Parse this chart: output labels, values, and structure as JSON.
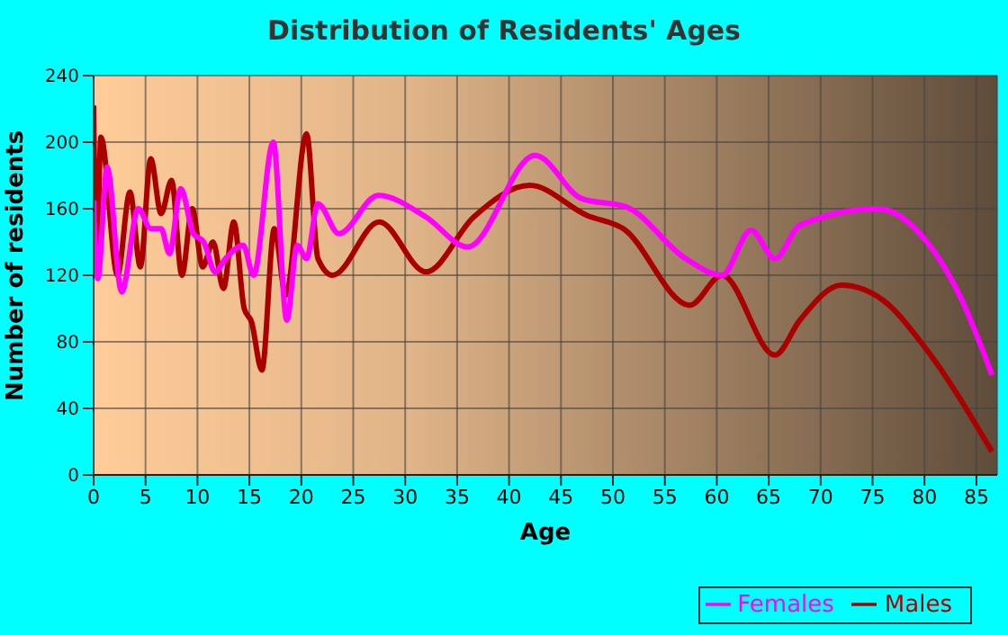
{
  "chart_data": {
    "type": "line",
    "title": "Distribution of Residents' Ages",
    "xlabel": "Age",
    "ylabel": "Number of residents",
    "xlim": [
      0,
      87
    ],
    "xticks": [
      0,
      5,
      10,
      15,
      20,
      25,
      30,
      35,
      40,
      45,
      50,
      55,
      60,
      65,
      70,
      75,
      80,
      85
    ],
    "ylim": [
      0,
      240
    ],
    "yticks": [
      0,
      40,
      80,
      120,
      160,
      200,
      240
    ],
    "grid": true,
    "legend": "bottom right",
    "marker": "none",
    "line_style": "solid",
    "series": [
      {
        "name": "Males",
        "color": "#aa0000",
        "x": [
          0,
          0.3,
          0.7,
          2.3,
          3.5,
          4.5,
          5.5,
          6.5,
          7.5,
          8.5,
          9.5,
          10.5,
          11.5,
          12.5,
          13.5,
          14.5,
          15.2,
          16.2,
          17.4,
          18.5,
          20.5,
          21.6,
          23,
          27.5,
          32,
          36.6,
          42,
          47.5,
          51,
          57.4,
          60.5,
          65.6,
          68,
          72,
          76,
          80,
          86.5
        ],
        "values": [
          222,
          128,
          203,
          120,
          170,
          125,
          190,
          157,
          177,
          120,
          160,
          125,
          140,
          112,
          152,
          100,
          92,
          63,
          148,
          108,
          205,
          130,
          120,
          152,
          122,
          155,
          174,
          156,
          148,
          102,
          120,
          72,
          93,
          114,
          105,
          77,
          14
        ]
      },
      {
        "name": "Females",
        "color": "#ff00ff",
        "x": [
          0,
          0.4,
          1.3,
          2.7,
          4.3,
          5.5,
          6.5,
          7.3,
          8.4,
          9.6,
          10.6,
          11.7,
          12.7,
          14.4,
          15.4,
          17.3,
          18.6,
          19.6,
          20.5,
          21.6,
          23.6,
          27.4,
          32,
          36,
          42.5,
          47,
          51.3,
          57,
          60.5,
          63.3,
          65.6,
          68,
          75.5,
          80.1,
          83.6,
          86.5
        ],
        "values": [
          165,
          118,
          185,
          110,
          160,
          148,
          148,
          133,
          172,
          145,
          140,
          122,
          130,
          138,
          120,
          200,
          93,
          138,
          130,
          163,
          145,
          168,
          155,
          137,
          192,
          166,
          161,
          130,
          120,
          147,
          130,
          150,
          160,
          141,
          105,
          60
        ]
      }
    ]
  }
}
